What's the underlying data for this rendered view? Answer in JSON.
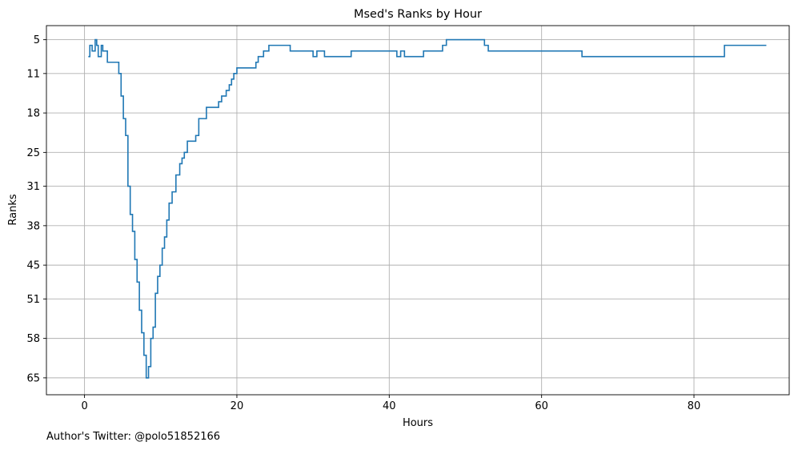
{
  "chart_data": {
    "type": "line",
    "title": "Msed's Ranks by Hour",
    "xlabel": "Hours",
    "ylabel": "Ranks",
    "xlim": [
      -5,
      92.5
    ],
    "ylim": [
      68,
      2.5
    ],
    "y_inverted": true,
    "grid": true,
    "line_style": "step",
    "line_color": "#1f77b4",
    "x_ticks": [
      0,
      20,
      40,
      60,
      80
    ],
    "x_tick_labels": [
      "0",
      "20",
      "40",
      "60",
      "80"
    ],
    "y_ticks": [
      5,
      11,
      18,
      25,
      31,
      38,
      45,
      51,
      58,
      65
    ],
    "y_tick_labels": [
      "5",
      "11",
      "18",
      "25",
      "31",
      "38",
      "45",
      "51",
      "58",
      "65"
    ],
    "series": [
      {
        "x": [
          0.5,
          0.7,
          1.0,
          1.4,
          1.6,
          1.8,
          2.2,
          2.4,
          3.0,
          3.5,
          4.5,
          4.8,
          5.1,
          5.4,
          5.7,
          6.0,
          6.3,
          6.6,
          6.9,
          7.2,
          7.5,
          7.8,
          8.1,
          8.4,
          8.7,
          9.0,
          9.3,
          9.6,
          9.9,
          10.2,
          10.5,
          10.8,
          11.1,
          11.5,
          12.0,
          12.5,
          12.8,
          13.1,
          13.5,
          14.0,
          14.6,
          15.0,
          16.0,
          17.3,
          17.6,
          18.0,
          18.6,
          19.0,
          19.3,
          19.6,
          20.0,
          22.2,
          22.5,
          22.8,
          23.5,
          24.2,
          27.0,
          30.0,
          30.5,
          31.5,
          35.0,
          41.0,
          41.5,
          42.0,
          44.5,
          47.0,
          47.5,
          52.5,
          53.0,
          63.8,
          65.3,
          84.0,
          89.5
        ],
        "y": [
          8,
          6,
          7,
          5,
          6,
          8,
          6,
          7,
          9,
          9,
          11,
          15,
          19,
          22,
          31,
          36,
          39,
          44,
          48,
          53,
          57,
          61,
          65,
          63,
          58,
          56,
          50,
          47,
          45,
          42,
          40,
          37,
          34,
          32,
          29,
          27,
          26,
          25,
          23,
          23,
          22,
          19,
          17,
          17,
          16,
          15,
          14,
          13,
          12,
          11,
          10,
          10,
          9,
          8,
          7,
          6,
          7,
          8,
          7,
          8,
          7,
          8,
          7,
          8,
          7,
          6,
          5,
          6,
          7,
          7,
          8,
          6,
          6
        ]
      }
    ]
  },
  "footnote": "Author's Twitter: @polo51852166"
}
